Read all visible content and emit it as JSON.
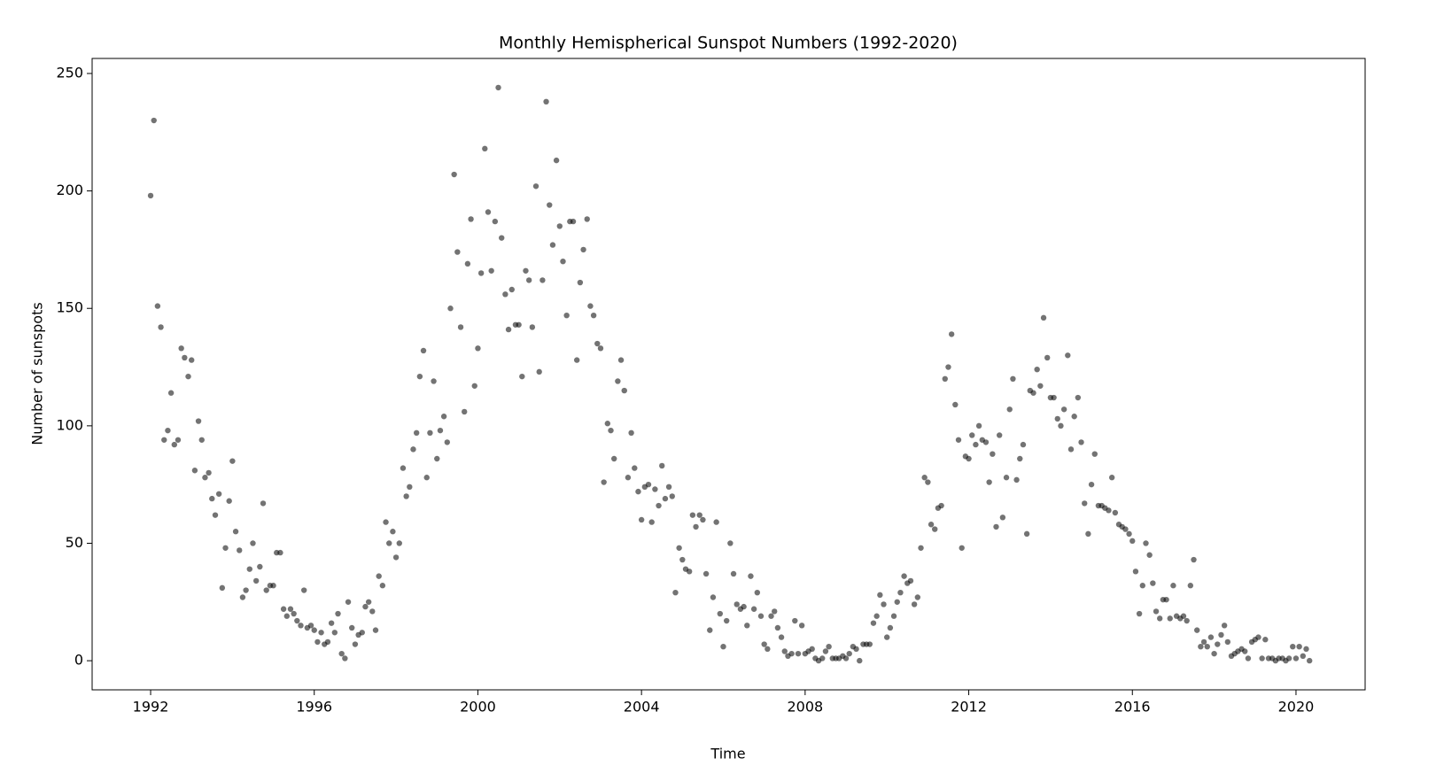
{
  "chart_data": {
    "type": "scatter",
    "title": "Monthly Hemispherical Sunspot Numbers (1992-2020)",
    "x_label": "Time",
    "y_label": "Number of sunspots",
    "color": "#000000",
    "alpha": 0.55,
    "xlim": [
      1990.57,
      2021.69
    ],
    "xticks": [
      1992,
      1996,
      2000,
      2004,
      2008,
      2012,
      2016,
      2020
    ],
    "ylim": [
      -12.4,
      256.4
    ],
    "yticks": [
      0,
      50,
      100,
      150,
      200,
      250
    ],
    "x": [
      1992.0,
      1992.08,
      1992.17,
      1992.25,
      1992.33,
      1992.42,
      1992.5,
      1992.58,
      1992.67,
      1992.75,
      1992.83,
      1992.92,
      1993.0,
      1993.08,
      1993.17,
      1993.25,
      1993.33,
      1993.42,
      1993.5,
      1993.58,
      1993.67,
      1993.75,
      1993.83,
      1993.92,
      1994.0,
      1994.08,
      1994.17,
      1994.25,
      1994.33,
      1994.42,
      1994.5,
      1994.58,
      1994.67,
      1994.75,
      1994.83,
      1994.92,
      1995.0,
      1995.08,
      1995.17,
      1995.25,
      1995.33,
      1995.42,
      1995.5,
      1995.58,
      1995.67,
      1995.75,
      1995.83,
      1995.92,
      1996.0,
      1996.08,
      1996.17,
      1996.25,
      1996.33,
      1996.42,
      1996.5,
      1996.58,
      1996.67,
      1996.75,
      1996.83,
      1996.92,
      1997.0,
      1997.08,
      1997.17,
      1997.25,
      1997.33,
      1997.42,
      1997.5,
      1997.58,
      1997.67,
      1997.75,
      1997.83,
      1997.92,
      1998.0,
      1998.08,
      1998.17,
      1998.25,
      1998.33,
      1998.42,
      1998.5,
      1998.58,
      1998.67,
      1998.75,
      1998.83,
      1998.92,
      1999.0,
      1999.08,
      1999.17,
      1999.25,
      1999.33,
      1999.42,
      1999.5,
      1999.58,
      1999.67,
      1999.75,
      1999.83,
      1999.92,
      2000.0,
      2000.08,
      2000.17,
      2000.25,
      2000.33,
      2000.42,
      2000.5,
      2000.58,
      2000.67,
      2000.75,
      2000.83,
      2000.92,
      2001.0,
      2001.08,
      2001.17,
      2001.25,
      2001.33,
      2001.42,
      2001.5,
      2001.58,
      2001.67,
      2001.75,
      2001.83,
      2001.92,
      2002.0,
      2002.08,
      2002.17,
      2002.25,
      2002.33,
      2002.42,
      2002.5,
      2002.58,
      2002.67,
      2002.75,
      2002.83,
      2002.92,
      2003.0,
      2003.08,
      2003.17,
      2003.25,
      2003.33,
      2003.42,
      2003.5,
      2003.58,
      2003.67,
      2003.75,
      2003.83,
      2003.92,
      2004.0,
      2004.08,
      2004.17,
      2004.25,
      2004.33,
      2004.42,
      2004.5,
      2004.58,
      2004.67,
      2004.75,
      2004.83,
      2004.92,
      2005.0,
      2005.08,
      2005.17,
      2005.25,
      2005.33,
      2005.42,
      2005.5,
      2005.58,
      2005.67,
      2005.75,
      2005.83,
      2005.92,
      2006.0,
      2006.08,
      2006.17,
      2006.25,
      2006.33,
      2006.42,
      2006.5,
      2006.58,
      2006.67,
      2006.75,
      2006.83,
      2006.92,
      2007.0,
      2007.08,
      2007.17,
      2007.25,
      2007.33,
      2007.42,
      2007.5,
      2007.58,
      2007.67,
      2007.75,
      2007.83,
      2007.92,
      2008.0,
      2008.08,
      2008.17,
      2008.25,
      2008.33,
      2008.42,
      2008.5,
      2008.58,
      2008.67,
      2008.75,
      2008.83,
      2008.92,
      2009.0,
      2009.08,
      2009.17,
      2009.25,
      2009.33,
      2009.42,
      2009.5,
      2009.58,
      2009.67,
      2009.75,
      2009.83,
      2009.92,
      2010.0,
      2010.08,
      2010.17,
      2010.25,
      2010.33,
      2010.42,
      2010.5,
      2010.58,
      2010.67,
      2010.75,
      2010.83,
      2010.92,
      2011.0,
      2011.08,
      2011.17,
      2011.25,
      2011.33,
      2011.42,
      2011.5,
      2011.58,
      2011.67,
      2011.75,
      2011.83,
      2011.92,
      2012.0,
      2012.08,
      2012.17,
      2012.25,
      2012.33,
      2012.42,
      2012.5,
      2012.58,
      2012.67,
      2012.75,
      2012.83,
      2012.92,
      2013.0,
      2013.08,
      2013.17,
      2013.25,
      2013.33,
      2013.42,
      2013.5,
      2013.58,
      2013.67,
      2013.75,
      2013.83,
      2013.92,
      2014.0,
      2014.08,
      2014.17,
      2014.25,
      2014.33,
      2014.42,
      2014.5,
      2014.58,
      2014.67,
      2014.75,
      2014.83,
      2014.92,
      2015.0,
      2015.08,
      2015.17,
      2015.25,
      2015.33,
      2015.42,
      2015.5,
      2015.58,
      2015.67,
      2015.75,
      2015.83,
      2015.92,
      2016.0,
      2016.08,
      2016.17,
      2016.25,
      2016.33,
      2016.42,
      2016.5,
      2016.58,
      2016.67,
      2016.75,
      2016.83,
      2016.92,
      2017.0,
      2017.08,
      2017.17,
      2017.25,
      2017.33,
      2017.42,
      2017.5,
      2017.58,
      2017.67,
      2017.75,
      2017.83,
      2017.92,
      2018.0,
      2018.08,
      2018.17,
      2018.25,
      2018.33,
      2018.42,
      2018.5,
      2018.58,
      2018.67,
      2018.75,
      2018.83,
      2018.92,
      2019.0,
      2019.08,
      2019.17,
      2019.25,
      2019.33,
      2019.42,
      2019.5,
      2019.58,
      2019.67,
      2019.75,
      2019.83,
      2019.92,
      2020.0,
      2020.08,
      2020.17,
      2020.25,
      2020.33
    ],
    "values": [
      198,
      230,
      151,
      142,
      94,
      98,
      114,
      92,
      94,
      133,
      129,
      121,
      128,
      81,
      102,
      94,
      78,
      80,
      69,
      62,
      71,
      31,
      48,
      68,
      85,
      55,
      47,
      27,
      30,
      39,
      50,
      34,
      40,
      67,
      30,
      32,
      32,
      46,
      46,
      22,
      19,
      22,
      20,
      17,
      15,
      30,
      14,
      15,
      13,
      8,
      12,
      7,
      8,
      16,
      12,
      20,
      3,
      1,
      25,
      14,
      7,
      11,
      12,
      23,
      25,
      21,
      13,
      36,
      32,
      59,
      50,
      55,
      44,
      50,
      82,
      70,
      74,
      90,
      97,
      121,
      132,
      78,
      97,
      119,
      86,
      98,
      104,
      93,
      150,
      207,
      174,
      142,
      106,
      169,
      188,
      117,
      133,
      165,
      218,
      191,
      166,
      187,
      244,
      180,
      156,
      141,
      158,
      143,
      143,
      121,
      166,
      162,
      142,
      202,
      123,
      162,
      238,
      194,
      177,
      213,
      185,
      170,
      147,
      187,
      187,
      128,
      161,
      175,
      188,
      151,
      147,
      135,
      133,
      76,
      101,
      98,
      86,
      119,
      128,
      115,
      78,
      97,
      82,
      72,
      60,
      74,
      75,
      59,
      73,
      66,
      83,
      69,
      74,
      70,
      29,
      48,
      43,
      39,
      38,
      62,
      57,
      62,
      60,
      37,
      13,
      27,
      59,
      20,
      6,
      17,
      50,
      37,
      24,
      22,
      23,
      15,
      36,
      22,
      29,
      19,
      7,
      5,
      19,
      21,
      14,
      10,
      4,
      2,
      3,
      17,
      3,
      15,
      3,
      4,
      5,
      1,
      0,
      1,
      4,
      6,
      1,
      1,
      1,
      2,
      1,
      3,
      6,
      5,
      0,
      7,
      7,
      7,
      16,
      19,
      28,
      24,
      10,
      14,
      19,
      25,
      29,
      36,
      33,
      34,
      24,
      27,
      48,
      78,
      76,
      58,
      56,
      65,
      66,
      120,
      125,
      139,
      109,
      94,
      48,
      87,
      86,
      96,
      92,
      100,
      94,
      93,
      76,
      88,
      57,
      96,
      61,
      78,
      107,
      120,
      77,
      86,
      92,
      54,
      115,
      114,
      124,
      117,
      146,
      129,
      112,
      112,
      103,
      100,
      107,
      130,
      90,
      104,
      112,
      93,
      67,
      54,
      75,
      88,
      66,
      66,
      65,
      64,
      78,
      63,
      58,
      57,
      56,
      54,
      51,
      38,
      20,
      32,
      50,
      45,
      33,
      21,
      18,
      26,
      26,
      18,
      32,
      19,
      18,
      19,
      17,
      32,
      43,
      13,
      6,
      8,
      6,
      10,
      3,
      7,
      11,
      15,
      8,
      2,
      3,
      4,
      5,
      4,
      1,
      8,
      9,
      10,
      1,
      9,
      1,
      1,
      0,
      1,
      1,
      0,
      1,
      6,
      1,
      6,
      2,
      5,
      0
    ]
  }
}
